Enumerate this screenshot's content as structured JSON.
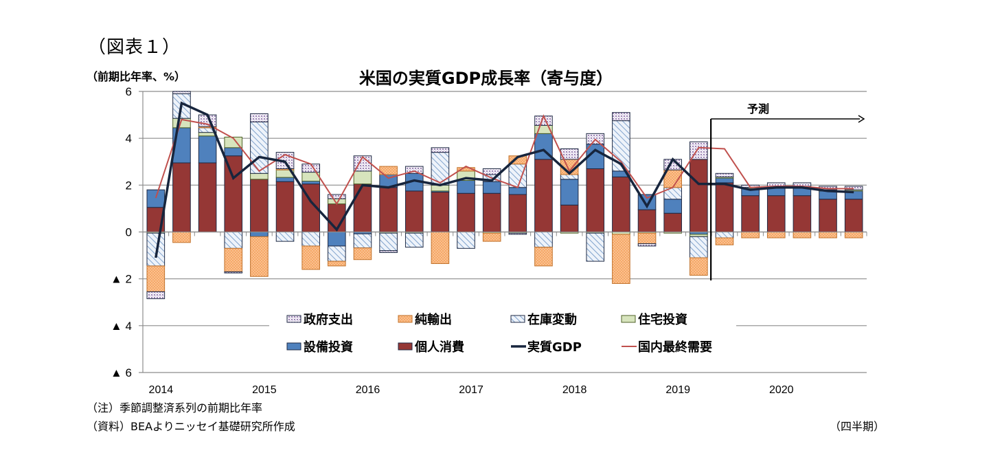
{
  "figure_label": "（図表１）",
  "unit_label": "（前期比年率、%）",
  "note": "（注）季節調整済系列の前期比年率",
  "source": "（資料）BEAよりニッセイ基礎研究所作成",
  "period_label": "（四半期）",
  "chart_data": {
    "type": "bar",
    "stacked": true,
    "title": "米国の実質GDP成長率（寄与度）",
    "xlabel": "（四半期）",
    "ylabel": "（前期比年率、%）",
    "ylim": [
      -6,
      6
    ],
    "yticks": [
      6,
      4,
      2,
      0,
      -2,
      -4,
      -6
    ],
    "ytick_labels": [
      "6",
      "4",
      "2",
      "0",
      "▲ 2",
      "▲ 4",
      "▲ 6"
    ],
    "grid": true,
    "year_labels": [
      "2014",
      "2015",
      "2016",
      "2017",
      "2018",
      "2019",
      "2020"
    ],
    "categories": [
      "2014Q1",
      "2014Q2",
      "2014Q3",
      "2014Q4",
      "2015Q1",
      "2015Q2",
      "2015Q3",
      "2015Q4",
      "2016Q1",
      "2016Q2",
      "2016Q3",
      "2016Q4",
      "2017Q1",
      "2017Q2",
      "2017Q3",
      "2017Q4",
      "2018Q1",
      "2018Q2",
      "2018Q3",
      "2018Q4",
      "2019Q1",
      "2019Q2",
      "2019Q3",
      "2019Q4",
      "2020Q1",
      "2020Q2",
      "2020Q3",
      "2020Q4"
    ],
    "forecast": {
      "label": "予測",
      "start_index": 22
    },
    "legend_position": "inside-bottom",
    "series": [
      {
        "name": "個人消費",
        "key": "pc",
        "kind": "bar",
        "color": "#953735",
        "values": [
          1.05,
          2.95,
          2.95,
          3.25,
          2.25,
          2.15,
          2.05,
          1.2,
          2.05,
          1.9,
          1.75,
          1.7,
          1.65,
          1.65,
          1.6,
          3.1,
          1.15,
          2.7,
          2.35,
          0.95,
          0.8,
          3.1,
          2.1,
          1.55,
          1.55,
          1.55,
          1.4,
          1.4
        ]
      },
      {
        "name": "設備投資",
        "key": "bi",
        "kind": "bar",
        "color": "#4f81bd",
        "values": [
          0.75,
          1.5,
          1.15,
          0.35,
          -0.2,
          0.18,
          0.12,
          -0.6,
          -0.08,
          0.55,
          0.75,
          0.05,
          0.55,
          0.5,
          0.3,
          1.1,
          1.1,
          1.05,
          0.25,
          0.65,
          0.6,
          -0.1,
          0.2,
          0.3,
          0.35,
          0.35,
          0.35,
          0.35
        ]
      },
      {
        "name": "住宅投資",
        "key": "res",
        "kind": "bar",
        "color": "#d7e4bd",
        "values": [
          -0.05,
          0.4,
          0.15,
          0.45,
          0.25,
          0.32,
          0.38,
          0.22,
          0.55,
          -0.05,
          -0.05,
          0.25,
          0.4,
          -0.05,
          -0.05,
          0.35,
          -0.05,
          -0.05,
          -0.1,
          -0.05,
          -0.05,
          -0.1,
          0.05,
          0.05,
          0.05,
          0.05,
          0.05,
          0.05
        ]
      },
      {
        "name": "在庫変動",
        "key": "inv",
        "kind": "bar",
        "color": "#dbe5f1",
        "pattern": "hatch",
        "values": [
          -1.4,
          1.05,
          0.2,
          -0.7,
          2.2,
          -0.4,
          -0.6,
          -0.65,
          -0.6,
          -0.75,
          -0.6,
          1.4,
          -0.7,
          0.3,
          1.0,
          -0.65,
          0.2,
          -1.2,
          2.15,
          0.0,
          0.5,
          -0.9,
          -0.25,
          0.0,
          0.0,
          0.0,
          0.0,
          0.0
        ]
      },
      {
        "name": "純輸出",
        "key": "nx",
        "kind": "bar",
        "color": "#fac090",
        "pattern": "checker",
        "values": [
          -1.1,
          -0.45,
          0.05,
          -1.0,
          -1.7,
          0.05,
          -1.0,
          -0.2,
          -0.5,
          0.35,
          0.0,
          -1.35,
          0.15,
          -0.35,
          0.35,
          -0.8,
          0.65,
          0.0,
          -2.1,
          -0.45,
          0.75,
          -0.75,
          -0.3,
          -0.25,
          -0.25,
          -0.25,
          -0.25,
          -0.25
        ]
      },
      {
        "name": "政府支出",
        "key": "gov",
        "kind": "bar",
        "color": "#e6e0ec",
        "pattern": "dots",
        "values": [
          -0.3,
          0.1,
          0.5,
          -0.05,
          0.35,
          0.7,
          0.35,
          0.18,
          0.65,
          -0.08,
          0.3,
          0.2,
          0.0,
          0.25,
          -0.05,
          0.4,
          0.45,
          0.45,
          0.35,
          -0.1,
          0.45,
          0.75,
          0.15,
          0.1,
          0.15,
          0.15,
          0.15,
          0.15
        ]
      },
      {
        "name": "実質GDP",
        "key": "gdp",
        "kind": "line",
        "color": "#17253d",
        "values": [
          -1.1,
          5.5,
          5.0,
          2.3,
          3.2,
          3.0,
          1.3,
          0.1,
          2.0,
          1.9,
          2.2,
          2.0,
          2.3,
          2.2,
          3.2,
          3.5,
          2.5,
          3.5,
          2.9,
          1.1,
          3.1,
          2.05,
          2.05,
          1.8,
          1.9,
          1.9,
          1.75,
          1.7
        ]
      },
      {
        "name": "国内最終需要",
        "key": "dfd",
        "kind": "line",
        "color": "#c0504d",
        "values": [
          1.45,
          4.8,
          4.6,
          4.0,
          2.6,
          3.3,
          2.9,
          1.2,
          3.2,
          2.3,
          2.6,
          2.1,
          2.8,
          2.3,
          1.9,
          4.95,
          2.6,
          3.95,
          3.0,
          1.45,
          1.9,
          3.6,
          3.55,
          1.9,
          1.95,
          1.95,
          1.85,
          1.85
        ]
      }
    ],
    "legend": [
      {
        "name": "政府支出",
        "key": "gov"
      },
      {
        "name": "純輸出",
        "key": "nx"
      },
      {
        "name": "在庫変動",
        "key": "inv"
      },
      {
        "name": "住宅投資",
        "key": "res"
      },
      {
        "name": "設備投資",
        "key": "bi"
      },
      {
        "name": "個人消費",
        "key": "pc"
      },
      {
        "name": "実質GDP",
        "key": "gdp"
      },
      {
        "name": "国内最終需要",
        "key": "dfd"
      }
    ]
  }
}
